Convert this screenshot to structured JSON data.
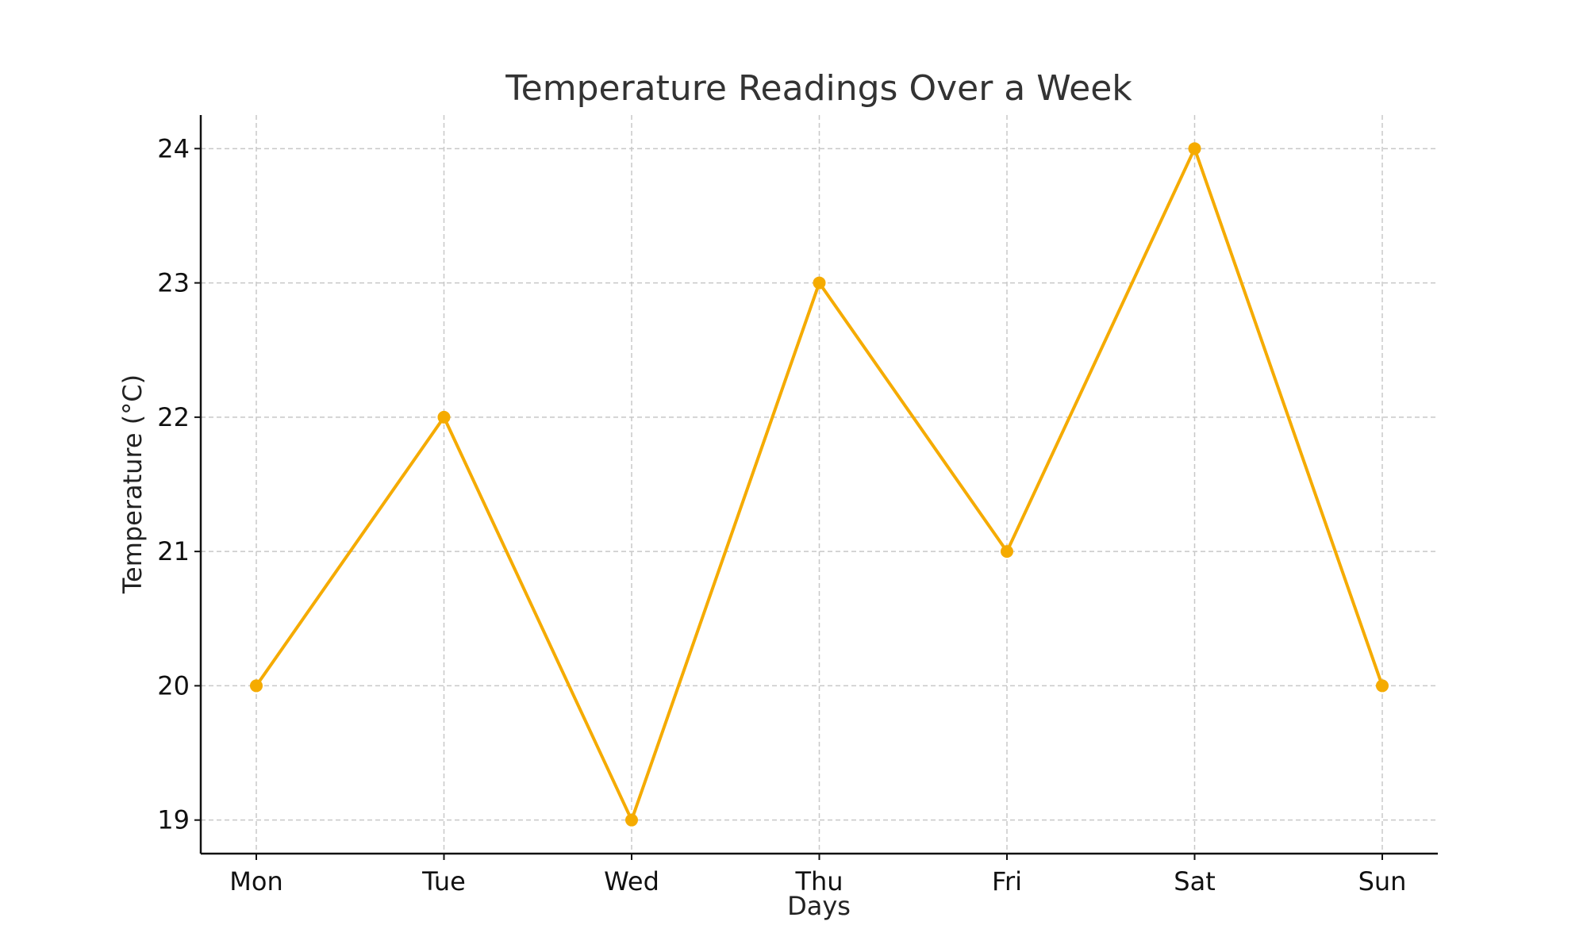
{
  "chart_data": {
    "type": "line",
    "title": "Temperature Readings Over a Week",
    "xlabel": "Days",
    "ylabel": "Temperature (°C)",
    "categories": [
      "Mon",
      "Tue",
      "Wed",
      "Thu",
      "Fri",
      "Sat",
      "Sun"
    ],
    "series": [
      {
        "color": "#f5ab00",
        "values": [
          20,
          22,
          19,
          23,
          21,
          24,
          20
        ]
      }
    ],
    "yticks": [
      19,
      20,
      21,
      22,
      23,
      24
    ],
    "ylim": [
      18.75,
      24.25
    ],
    "grid": true,
    "legend": "none"
  }
}
